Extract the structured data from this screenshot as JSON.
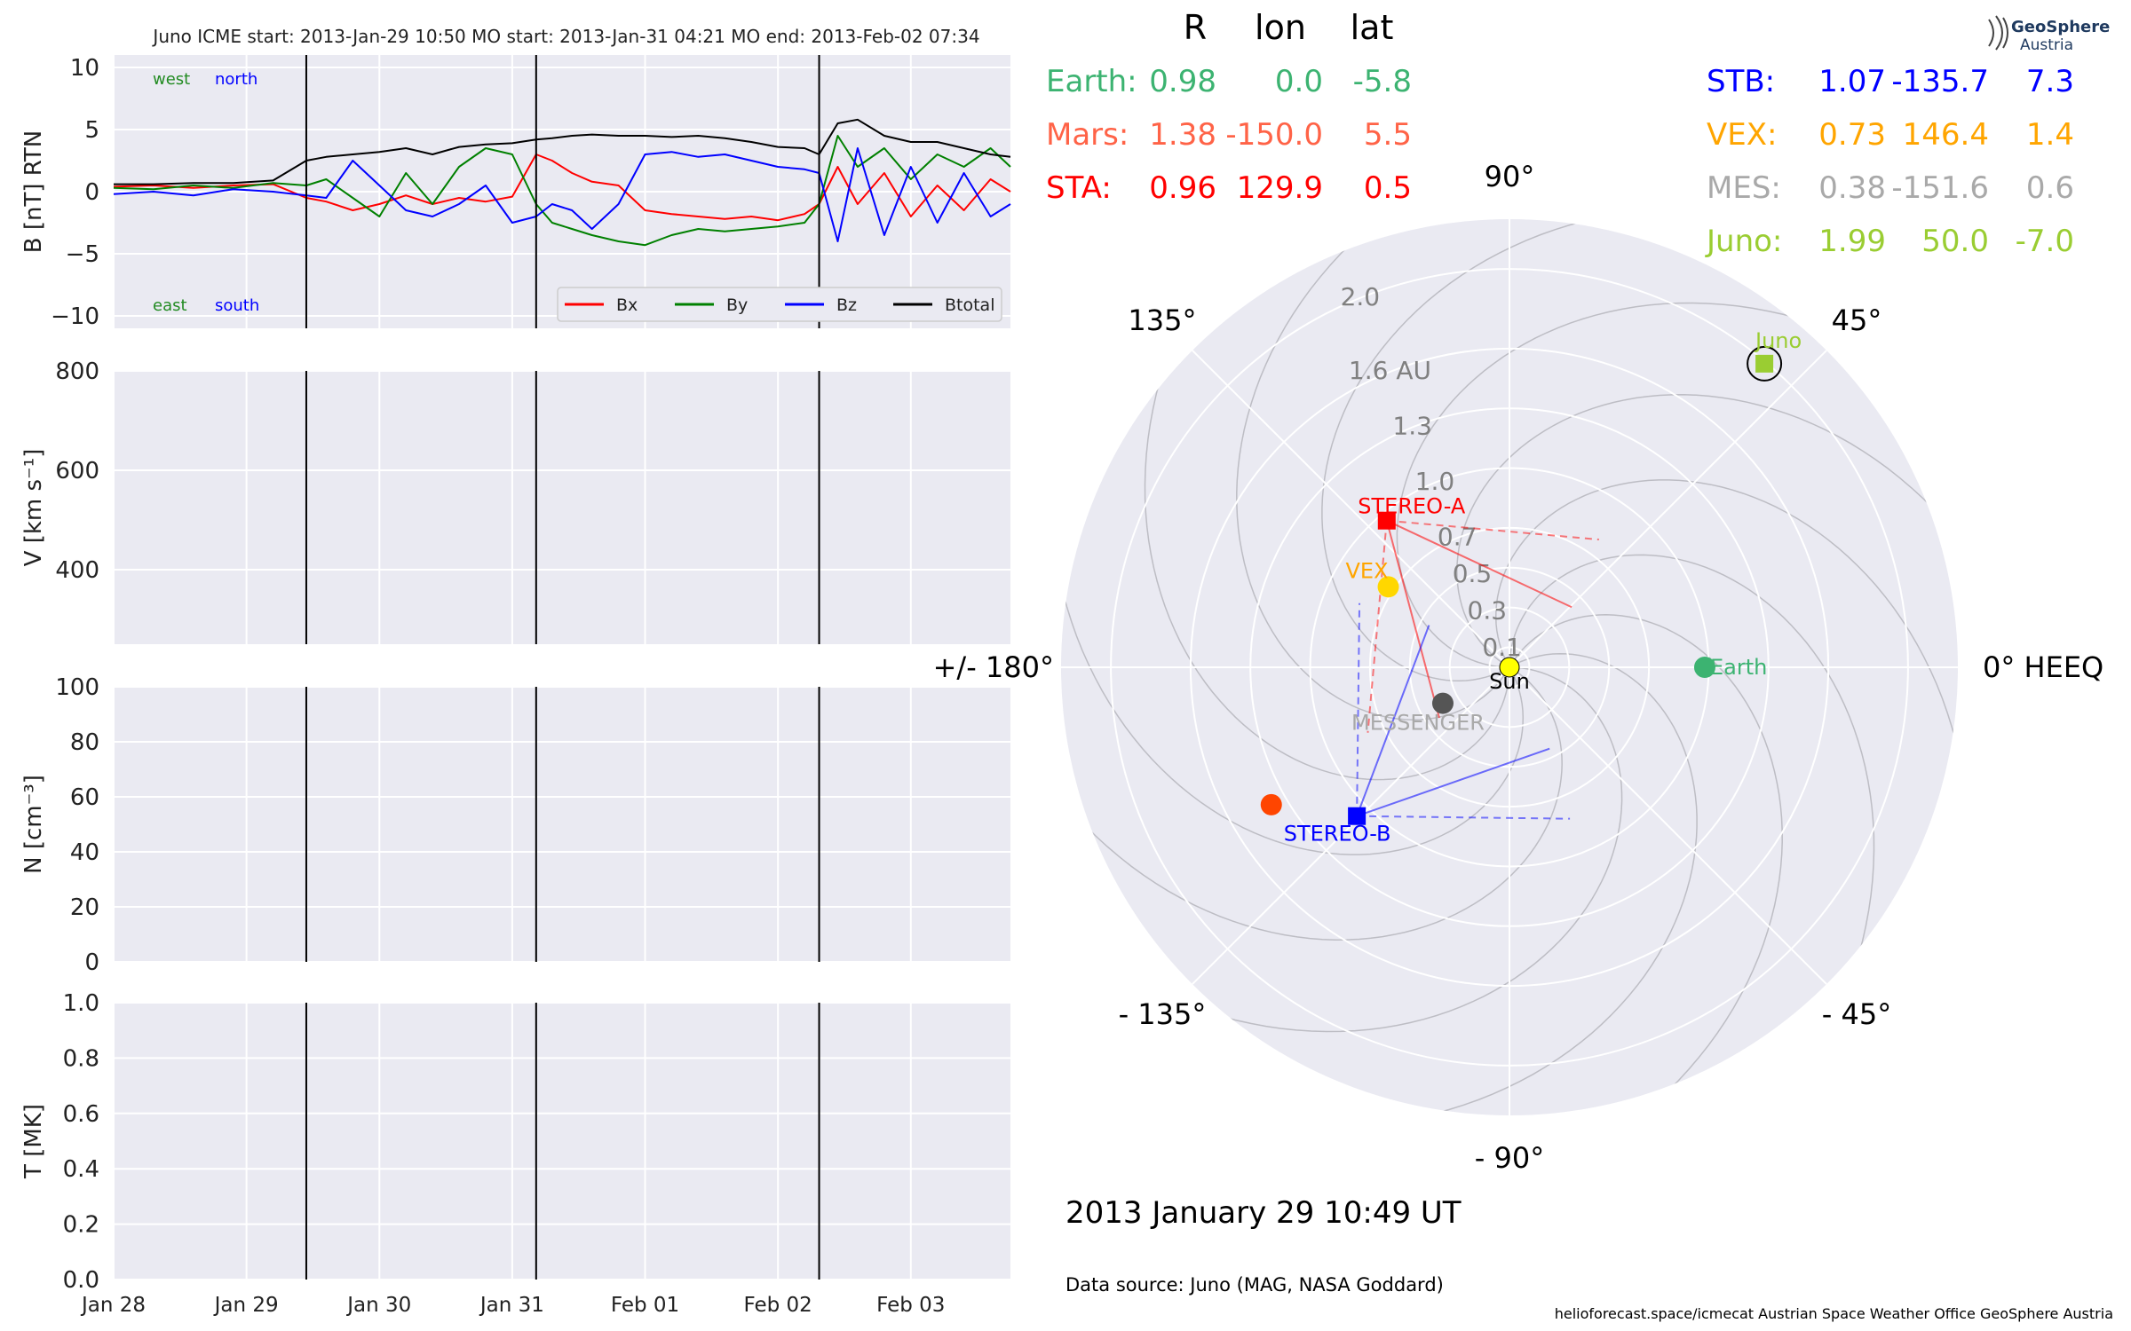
{
  "header": "Juno    ICME start: 2013-Jan-29 10:50   MO start: 2013-Jan-31 04:21   MO end: 2013-Feb-02 07:34",
  "logo": {
    "name": "GeoSphere",
    "sub": "Austria"
  },
  "footer": {
    "datetime": "2013 January 29  10:49 UT",
    "source": "Data source: Juno (MAG, NASA Goddard)",
    "credit": "helioforecast.space/icmecat   Austrian Space Weather Office   GeoSphere Austria"
  },
  "chart_data": [
    {
      "type": "line",
      "ylabel": "B [nT] RTN",
      "xlim": [
        0,
        6.75
      ],
      "ylim": [
        -11,
        11
      ],
      "yticks": [
        10,
        5,
        0,
        -5,
        -10
      ],
      "yticklabels": [
        "10",
        "5",
        "0",
        "−5",
        "−10"
      ],
      "grid": true,
      "legend_placement": "lower-right",
      "corner_labels": {
        "top_left": [
          {
            "text": "west",
            "color": "#228B22"
          },
          {
            "text": "north",
            "color": "#0000ff"
          }
        ],
        "bottom_left": [
          {
            "text": "east",
            "color": "#228B22"
          },
          {
            "text": "south",
            "color": "#0000ff"
          }
        ]
      },
      "event_lines": [
        "2013-Jan-29 10:50",
        "2013-Jan-31 04:21",
        "2013-Feb-02 07:34"
      ],
      "event_x": [
        1.45,
        3.18,
        5.31
      ],
      "series": [
        {
          "name": "Bx",
          "color": "#ff0000",
          "x": [
            0,
            0.3,
            0.6,
            0.9,
            1.2,
            1.45,
            1.6,
            1.8,
            2.0,
            2.2,
            2.4,
            2.6,
            2.8,
            3.0,
            3.18,
            3.3,
            3.45,
            3.6,
            3.8,
            4.0,
            4.2,
            4.4,
            4.6,
            4.8,
            5.0,
            5.2,
            5.31,
            5.45,
            5.6,
            5.8,
            6.0,
            6.2,
            6.4,
            6.6,
            6.75
          ],
          "y": [
            0.4,
            0.5,
            0.3,
            0.5,
            0.6,
            -0.5,
            -0.8,
            -1.5,
            -1.0,
            -0.3,
            -1.0,
            -0.5,
            -0.8,
            -0.4,
            3.0,
            2.5,
            1.5,
            0.8,
            0.5,
            -1.5,
            -1.8,
            -2.0,
            -2.2,
            -2.0,
            -2.3,
            -1.8,
            -1.0,
            2.0,
            -1.0,
            1.5,
            -2.0,
            0.5,
            -1.5,
            1.0,
            0.0
          ]
        },
        {
          "name": "By",
          "color": "#008000",
          "x": [
            0,
            0.3,
            0.6,
            0.9,
            1.2,
            1.45,
            1.6,
            1.8,
            2.0,
            2.2,
            2.4,
            2.6,
            2.8,
            3.0,
            3.18,
            3.3,
            3.45,
            3.6,
            3.8,
            4.0,
            4.2,
            4.4,
            4.6,
            4.8,
            5.0,
            5.2,
            5.31,
            5.45,
            5.6,
            5.8,
            6.0,
            6.2,
            6.4,
            6.6,
            6.75
          ],
          "y": [
            0.3,
            0.2,
            0.5,
            0.3,
            0.7,
            0.5,
            1.0,
            -0.5,
            -2.0,
            1.5,
            -1.0,
            2.0,
            3.5,
            3.0,
            -1.0,
            -2.5,
            -3.0,
            -3.5,
            -4.0,
            -4.3,
            -3.5,
            -3.0,
            -3.2,
            -3.0,
            -2.8,
            -2.5,
            -1.0,
            4.5,
            2.0,
            3.5,
            1.0,
            3.0,
            2.0,
            3.5,
            2.0
          ]
        },
        {
          "name": "Bz",
          "color": "#0000ff",
          "x": [
            0,
            0.3,
            0.6,
            0.9,
            1.2,
            1.45,
            1.6,
            1.8,
            2.0,
            2.2,
            2.4,
            2.6,
            2.8,
            3.0,
            3.18,
            3.3,
            3.45,
            3.6,
            3.8,
            4.0,
            4.2,
            4.4,
            4.6,
            4.8,
            5.0,
            5.2,
            5.31,
            5.45,
            5.6,
            5.8,
            6.0,
            6.2,
            6.4,
            6.6,
            6.75
          ],
          "y": [
            -0.2,
            0.0,
            -0.3,
            0.2,
            0.0,
            -0.3,
            -0.5,
            2.5,
            0.5,
            -1.5,
            -2.0,
            -1.0,
            0.5,
            -2.5,
            -2.0,
            -1.0,
            -1.5,
            -3.0,
            -1.0,
            3.0,
            3.2,
            2.8,
            3.0,
            2.5,
            2.0,
            1.8,
            1.5,
            -4.0,
            3.5,
            -3.5,
            2.0,
            -2.5,
            1.5,
            -2.0,
            -1.0
          ]
        },
        {
          "name": "Btotal",
          "color": "#000000",
          "x": [
            0,
            0.3,
            0.6,
            0.9,
            1.2,
            1.45,
            1.6,
            1.8,
            2.0,
            2.2,
            2.4,
            2.6,
            2.8,
            3.0,
            3.18,
            3.3,
            3.45,
            3.6,
            3.8,
            4.0,
            4.2,
            4.4,
            4.6,
            4.8,
            5.0,
            5.2,
            5.31,
            5.45,
            5.6,
            5.8,
            6.0,
            6.2,
            6.4,
            6.6,
            6.75
          ],
          "y": [
            0.6,
            0.6,
            0.7,
            0.7,
            0.9,
            2.5,
            2.8,
            3.0,
            3.2,
            3.5,
            3.0,
            3.6,
            3.8,
            3.9,
            4.2,
            4.3,
            4.5,
            4.6,
            4.5,
            4.5,
            4.4,
            4.5,
            4.3,
            4.0,
            3.6,
            3.5,
            3.0,
            5.5,
            5.8,
            4.5,
            4.0,
            4.0,
            3.5,
            3.0,
            2.8
          ]
        }
      ]
    },
    {
      "type": "line",
      "ylabel": "V [km s⁻¹]",
      "xlim": [
        0,
        6.75
      ],
      "ylim": [
        250,
        800
      ],
      "yticks": [
        800,
        600,
        400
      ],
      "yticklabels": [
        "800",
        "600",
        "400"
      ],
      "grid": true,
      "series": []
    },
    {
      "type": "line",
      "ylabel": "N [cm⁻³]",
      "xlim": [
        0,
        6.75
      ],
      "ylim": [
        0,
        100
      ],
      "yticks": [
        100,
        80,
        60,
        40,
        20,
        0
      ],
      "yticklabels": [
        "100",
        "80",
        "60",
        "40",
        "20",
        "0"
      ],
      "grid": true,
      "series": []
    },
    {
      "type": "line",
      "ylabel": "T [MK]",
      "xlim": [
        0,
        6.75
      ],
      "ylim": [
        0,
        1
      ],
      "yticks": [
        1,
        0.8,
        0.6,
        0.4,
        0.2,
        0
      ],
      "yticklabels": [
        "1.0",
        "0.8",
        "0.6",
        "0.4",
        "0.2",
        "0.0"
      ],
      "xticks": [
        0,
        1,
        2,
        3,
        4,
        5,
        6
      ],
      "xticklabels": [
        "Jan 28",
        "Jan 29",
        "Jan 30",
        "Jan 31",
        "Feb 01",
        "Feb 02",
        "Feb 03"
      ],
      "grid": true,
      "series": []
    },
    {
      "type": "scatter",
      "subtype": "polar",
      "r_unit": "AU",
      "rmax": 2.25,
      "rticks": [
        0.1,
        0.3,
        0.5,
        0.7,
        1.0,
        1.3,
        1.6,
        2.0
      ],
      "rticklabels": [
        "0.1",
        "0.3",
        "0.5",
        "0.7",
        "1.0",
        "1.3",
        "1.6 AU",
        "2.0"
      ],
      "angle_labels": [
        {
          "angle": 0,
          "text": "0° HEEQ"
        },
        {
          "angle": 45,
          "text": "45°"
        },
        {
          "angle": 90,
          "text": "90°"
        },
        {
          "angle": 135,
          "text": "135°"
        },
        {
          "angle": 180,
          "text": "+/- 180°"
        },
        {
          "angle": -135,
          "text": "- 135°"
        },
        {
          "angle": -90,
          "text": "- 90°"
        },
        {
          "angle": -45,
          "text": "- 45°"
        }
      ],
      "bodies": [
        {
          "name": "Sun",
          "label": "Sun",
          "r": 0,
          "lon": 0,
          "color": "#ffff00",
          "marker": "circle",
          "label_color": "#000000"
        },
        {
          "name": "Earth",
          "label": "Earth",
          "r": 0.98,
          "lon": 0.0,
          "color": "#3cb371",
          "marker": "circle",
          "label_color": "#3cb371"
        },
        {
          "name": "Mars",
          "label": "",
          "r": 1.38,
          "lon": -150.0,
          "color": "#ff4500",
          "marker": "circle",
          "label_color": "#ff4500"
        },
        {
          "name": "STA",
          "label": "STEREO-A",
          "r": 0.96,
          "lon": 129.9,
          "color": "#ff0000",
          "marker": "square",
          "label_color": "#ff0000"
        },
        {
          "name": "STB",
          "label": "STEREO-B",
          "r": 1.07,
          "lon": -135.7,
          "color": "#0000ff",
          "marker": "square",
          "label_color": "#0000ff"
        },
        {
          "name": "VEX",
          "label": "VEX",
          "r": 0.73,
          "lon": 146.4,
          "color": "#ffd700",
          "marker": "circle",
          "label_color": "#ffa500"
        },
        {
          "name": "MES",
          "label": "MESSENGER",
          "r": 0.38,
          "lon": -151.6,
          "color": "#555555",
          "marker": "circle",
          "label_color": "#a9a9a9"
        },
        {
          "name": "Juno",
          "label": "Juno",
          "r": 1.99,
          "lon": 50.0,
          "color": "#9acd32",
          "marker": "square",
          "label_color": "#9acd32",
          "highlight": true
        }
      ]
    }
  ],
  "table": {
    "headers": [
      "R",
      "lon",
      "lat"
    ],
    "left": [
      {
        "name": "Earth:",
        "R": "0.98",
        "lon": "0.0",
        "lat": "-5.8",
        "color": "#3cb371"
      },
      {
        "name": "Mars:",
        "R": "1.38",
        "lon": "-150.0",
        "lat": "5.5",
        "color": "#ff6347"
      },
      {
        "name": "STA:",
        "R": "0.96",
        "lon": "129.9",
        "lat": "0.5",
        "color": "#ff0000"
      }
    ],
    "right": [
      {
        "name": "STB:",
        "R": "1.07",
        "lon": "-135.7",
        "lat": "7.3",
        "color": "#0000ff"
      },
      {
        "name": "VEX:",
        "R": "0.73",
        "lon": "146.4",
        "lat": "1.4",
        "color": "#ffa500"
      },
      {
        "name": "MES:",
        "R": "0.38",
        "lon": "-151.6",
        "lat": "0.6",
        "color": "#a9a9a9"
      },
      {
        "name": "Juno:",
        "R": "1.99",
        "lon": "50.0",
        "lat": "-7.0",
        "color": "#9acd32"
      }
    ]
  }
}
